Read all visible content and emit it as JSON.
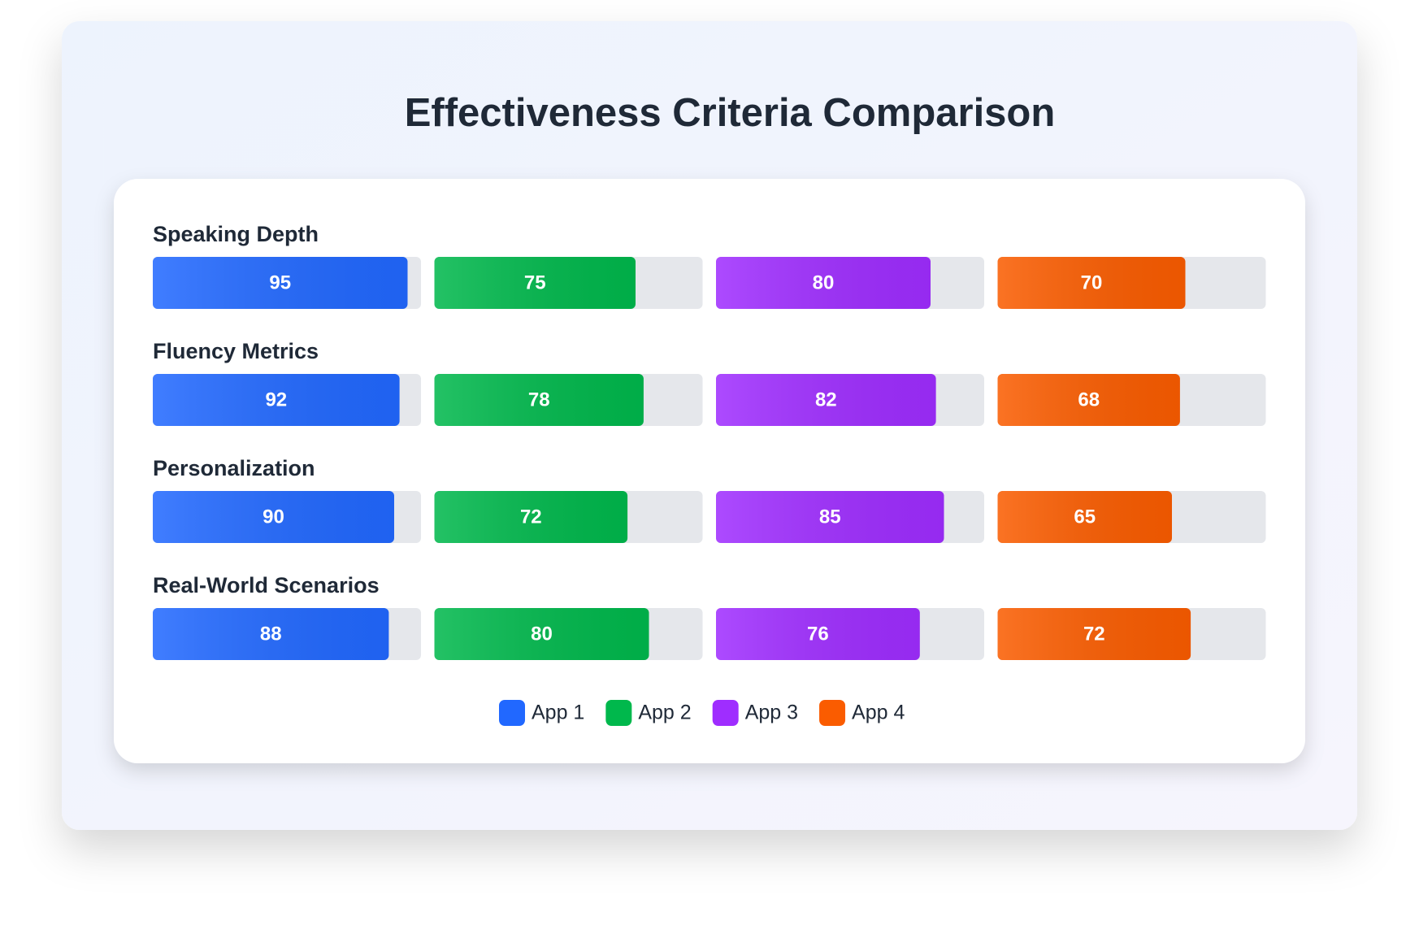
{
  "chart_data": {
    "type": "bar",
    "title": "Effectiveness Criteria Comparison",
    "categories": [
      "Speaking Depth",
      "Fluency Metrics",
      "Personalization",
      "Real-World Scenarios"
    ],
    "series": [
      {
        "name": "App 1",
        "color": "#2168ff",
        "values": [
          95,
          92,
          90,
          88
        ]
      },
      {
        "name": "App 2",
        "color": "#00b84c",
        "values": [
          75,
          78,
          72,
          80
        ]
      },
      {
        "name": "App 3",
        "color": "#9f2dff",
        "values": [
          80,
          82,
          85,
          76
        ]
      },
      {
        "name": "App 4",
        "color": "#fa5c00",
        "values": [
          70,
          68,
          65,
          72
        ]
      }
    ],
    "xlim": [
      0,
      100
    ]
  }
}
